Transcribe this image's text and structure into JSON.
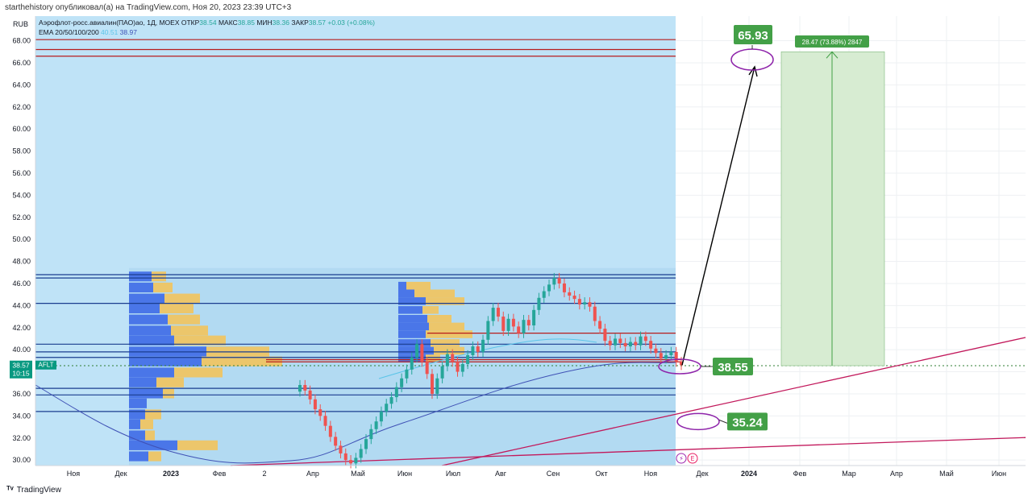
{
  "publish_line": "starthehistory опубликовал(а) на TradingView.com, Ноя 20, 2023 23:39 UTC+3",
  "footer_brand": "TradingView",
  "chart_data": {
    "type": "candlestick",
    "currency_label": "RUB",
    "symbol_line": {
      "name": "Аэрофлот-росс.авиалин(ПАО)ао, 1Д, MOEX",
      "open_label": "ОТКР",
      "open": "38.54",
      "high_label": "МАКС",
      "high": "38.85",
      "low_label": "МИН",
      "low": "38.36",
      "close_label": "ЗАКР",
      "close": "38.57",
      "change": "+0.03 (+0.08%)"
    },
    "ema_line": {
      "label": "EMA 20/50/100/200",
      "v1": "40.51",
      "v2": "38.97"
    },
    "ylim": [
      29.5,
      69.5
    ],
    "y_ticks": [
      "68.00",
      "66.00",
      "64.00",
      "62.00",
      "60.00",
      "58.00",
      "56.00",
      "54.00",
      "52.00",
      "50.00",
      "48.00",
      "46.00",
      "44.00",
      "42.00",
      "40.00",
      "38.00",
      "36.00",
      "34.00",
      "32.00",
      "30.00"
    ],
    "x_ticks": [
      "Ноя",
      "Дек",
      "2023",
      "Фев",
      "2",
      "Апр",
      "Май",
      "Июн",
      "Июл",
      "Авг",
      "Сен",
      "Окт",
      "Ноя",
      "Дек",
      "2024",
      "Фев",
      "Мар",
      "Апр",
      "Май",
      "Июн"
    ],
    "bold_x_ticks": [
      "2023",
      "2024"
    ],
    "price_tag": {
      "price": "38.57",
      "ticker": "AFLT",
      "countdown": "10:15"
    },
    "horizontal_levels_red": [
      67.2,
      66.6,
      68.1,
      41.5,
      39.1,
      38.9
    ],
    "horizontal_levels_blue": [
      46.8,
      46.5,
      44.2,
      40.5,
      39.8,
      39.3,
      36.5,
      35.9,
      34.4
    ],
    "candles_close": [
      36.8,
      36.3,
      35.5,
      34.6,
      34.0,
      33.1,
      32.1,
      31.3,
      30.6,
      30.0,
      29.7,
      30.2,
      31.0,
      31.9,
      32.8,
      33.5,
      34.4,
      35.1,
      35.7,
      36.6,
      37.4,
      38.2,
      39.3,
      40.5,
      38.9,
      37.8,
      36.0,
      37.4,
      38.5,
      39.6,
      38.9,
      38.0,
      38.7,
      39.5,
      40.3,
      39.8,
      40.9,
      42.6,
      43.8,
      43.0,
      41.7,
      42.8,
      42.1,
      41.5,
      42.7,
      42.2,
      43.6,
      44.7,
      45.3,
      45.9,
      46.5,
      46.0,
      45.2,
      44.9,
      44.6,
      44.1,
      44.3,
      43.9,
      42.6,
      41.9,
      40.8,
      40.4,
      41.0,
      40.6,
      40.3,
      40.7,
      40.4,
      41.2,
      40.8,
      40.1,
      39.7,
      39.2,
      39.5,
      39.8,
      38.9,
      38.6
    ],
    "ema_fast_label": "40.51",
    "ema_slow_label": "38.97",
    "target_label": "65.93",
    "target_value": 65.93,
    "current_label": "38.55",
    "current_value": 38.55,
    "support_label": "35.24",
    "support_value": 35.24,
    "measure": {
      "label": "28.47 (73.88%) 2847",
      "from": 38.55,
      "to": 67.0
    },
    "event_icons": [
      "⚡",
      "E"
    ],
    "colors": {
      "up": "#26a69a",
      "down": "#ef5350",
      "bg_zone": "#bfe3f7",
      "green_label": "#43a047",
      "trend": "#c2185b",
      "ellipse": "#8e24aa",
      "level_red": "#b71c1c",
      "level_blue": "#1a3d8f",
      "measure_fill": "#d7ecd2"
    }
  }
}
